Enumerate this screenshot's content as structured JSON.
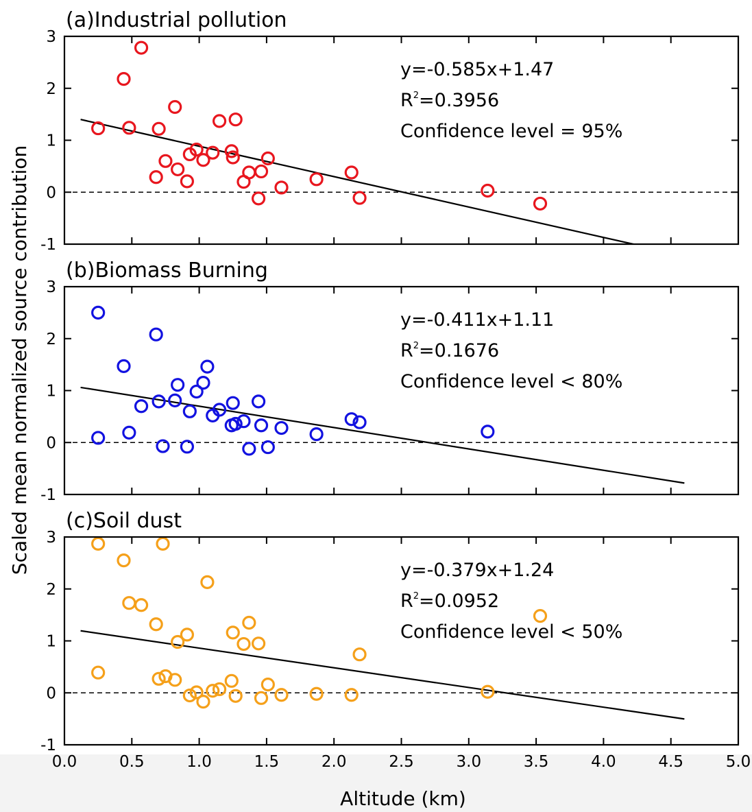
{
  "ylabel": "Scaled mean normalized source contribution",
  "xlabel": "Altitude (km)",
  "x_ticks": [
    "0.0",
    "0.5",
    "1.0",
    "1.5",
    "2.0",
    "2.5",
    "3.0",
    "3.5",
    "4.0",
    "4.5",
    "5.0"
  ],
  "y_ticks": [
    "-1",
    "0",
    "1",
    "2",
    "3"
  ],
  "chart_data": [
    {
      "type": "scatter",
      "title": "(a)Industrial pollution",
      "color": "#e8161e",
      "xlim": [
        0,
        5
      ],
      "ylim": [
        -1,
        3
      ],
      "x": [
        0.25,
        0.44,
        0.48,
        0.57,
        0.68,
        0.7,
        0.75,
        0.82,
        0.84,
        0.91,
        0.93,
        0.98,
        1.03,
        1.1,
        1.15,
        1.24,
        1.25,
        1.27,
        1.33,
        1.37,
        1.44,
        1.46,
        1.51,
        1.61,
        1.87,
        2.13,
        2.19,
        3.14,
        3.53
      ],
      "y": [
        1.23,
        2.18,
        1.24,
        2.78,
        0.29,
        1.22,
        0.6,
        1.64,
        0.44,
        0.21,
        0.73,
        0.82,
        0.62,
        0.76,
        1.37,
        0.79,
        0.67,
        1.4,
        0.2,
        0.38,
        -0.12,
        0.4,
        0.65,
        0.09,
        0.25,
        0.38,
        -0.11,
        0.03,
        -0.22
      ],
      "fit": {
        "slope": -0.585,
        "intercept": 1.47,
        "x_range": [
          0.12,
          4.6
        ]
      },
      "annotations": [
        "y=-0.585x+1.47",
        "=0.3956",
        "Confidence level = 95%"
      ],
      "r2_label": "R"
    },
    {
      "type": "scatter",
      "title": "(b)Biomass Burning",
      "color": "#1212e0",
      "xlim": [
        0,
        5
      ],
      "ylim": [
        -1,
        3
      ],
      "x": [
        0.25,
        0.25,
        0.44,
        0.48,
        0.57,
        0.68,
        0.7,
        0.73,
        0.82,
        0.84,
        0.91,
        0.93,
        0.98,
        1.03,
        1.06,
        1.1,
        1.15,
        1.24,
        1.25,
        1.27,
        1.33,
        1.37,
        1.44,
        1.46,
        1.51,
        1.61,
        1.87,
        2.13,
        2.19,
        3.14
      ],
      "y": [
        2.5,
        0.09,
        1.47,
        0.19,
        0.7,
        2.08,
        0.79,
        -0.07,
        0.81,
        1.11,
        -0.08,
        0.6,
        0.98,
        1.15,
        1.46,
        0.52,
        0.63,
        0.33,
        0.76,
        0.36,
        0.41,
        -0.12,
        0.79,
        0.33,
        -0.09,
        0.28,
        0.16,
        0.45,
        0.39,
        0.21
      ],
      "fit": {
        "slope": -0.411,
        "intercept": 1.11,
        "x_range": [
          0.12,
          4.6
        ]
      },
      "annotations": [
        "y=-0.411x+1.11",
        "=0.1676",
        "Confidence level < 80%"
      ],
      "r2_label": "R"
    },
    {
      "type": "scatter",
      "title": "(c)Soil dust",
      "color": "#f5a01a",
      "xlim": [
        0,
        5
      ],
      "ylim": [
        -1,
        3
      ],
      "x": [
        0.25,
        0.25,
        0.44,
        0.48,
        0.57,
        0.68,
        0.7,
        0.73,
        0.75,
        0.82,
        0.84,
        0.91,
        0.93,
        0.98,
        1.03,
        1.06,
        1.1,
        1.15,
        1.24,
        1.25,
        1.27,
        1.33,
        1.37,
        1.44,
        1.46,
        1.51,
        1.61,
        1.87,
        2.13,
        2.19,
        3.14,
        3.53
      ],
      "y": [
        2.87,
        0.39,
        2.55,
        1.73,
        1.69,
        1.32,
        0.27,
        2.87,
        0.32,
        0.25,
        0.98,
        1.12,
        -0.05,
        0.01,
        -0.17,
        2.13,
        0.04,
        0.07,
        0.23,
        1.16,
        -0.06,
        0.94,
        1.35,
        0.95,
        -0.1,
        0.16,
        -0.04,
        -0.02,
        -0.04,
        0.74,
        0.02,
        1.48
      ],
      "fit": {
        "slope": -0.379,
        "intercept": 1.24,
        "x_range": [
          0.12,
          4.6
        ]
      },
      "annotations": [
        "y=-0.379x+1.24",
        "=0.0952",
        "Confidence level < 50%"
      ],
      "r2_label": "R"
    }
  ]
}
